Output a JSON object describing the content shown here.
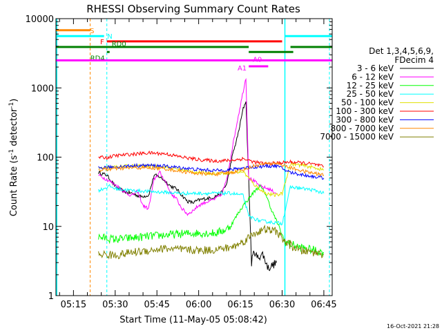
{
  "chart_data": {
    "type": "line",
    "title": "RHESSI Observing Summary Count Rates",
    "xlabel": "Start Time (11-May-05 05:08:42)",
    "ylabel_main": "Count Rate (s",
    "ylabel_sup1": "-1",
    "ylabel_mid": " detector",
    "ylabel_sup2": "-1",
    "ylabel_end": ")",
    "y_scale": "log",
    "ylim": [
      1,
      10000
    ],
    "xlim_minutes": [
      "05:08:42",
      "06:48:00"
    ],
    "x_ticks": [
      "05:15",
      "05:30",
      "05:45",
      "06:00",
      "06:15",
      "06:30",
      "06:45"
    ],
    "y_ticks": [
      "1",
      "10",
      "100",
      "1000",
      "10000"
    ],
    "legend_header": [
      "Det 1,3,4,5,6,9,",
      "FDecim 4"
    ],
    "legend_placement": "right",
    "series": [
      {
        "name": "3 - 6 keV",
        "color": "#000000",
        "points": [
          [
            "05:24",
            60
          ],
          [
            "05:27",
            55
          ],
          [
            "05:30",
            38
          ],
          [
            "05:33",
            32
          ],
          [
            "05:36",
            30
          ],
          [
            "05:39",
            27
          ],
          [
            "05:42",
            28
          ],
          [
            "05:44",
            55
          ],
          [
            "05:46",
            52
          ],
          [
            "05:48",
            45
          ],
          [
            "05:50",
            38
          ],
          [
            "05:52",
            35
          ],
          [
            "05:54",
            28
          ],
          [
            "05:56",
            23
          ],
          [
            "05:58",
            22
          ],
          [
            "06:00",
            24
          ],
          [
            "06:02",
            25
          ],
          [
            "06:05",
            26
          ],
          [
            "06:08",
            30
          ],
          [
            "06:10",
            40
          ],
          [
            "06:12",
            100
          ],
          [
            "06:14",
            200
          ],
          [
            "06:16",
            500
          ],
          [
            "06:17",
            650
          ],
          [
            "06:18",
            45
          ],
          [
            "06:19",
            3
          ],
          [
            "06:20",
            4.5
          ],
          [
            "06:21",
            3.5
          ],
          [
            "06:23",
            4
          ],
          [
            "06:25",
            2.5
          ],
          [
            "06:28",
            3
          ]
        ]
      },
      {
        "name": "6 - 12 keV",
        "color": "#ff00ff",
        "points": [
          [
            "05:24",
            55
          ],
          [
            "05:26",
            50
          ],
          [
            "05:28",
            45
          ],
          [
            "05:30",
            40
          ],
          [
            "05:32",
            35
          ],
          [
            "05:34",
            30
          ],
          [
            "05:36",
            28
          ],
          [
            "05:38",
            32
          ],
          [
            "05:40",
            20
          ],
          [
            "05:42",
            18
          ],
          [
            "05:44",
            48
          ],
          [
            "05:46",
            60
          ],
          [
            "05:48",
            45
          ],
          [
            "05:50",
            30
          ],
          [
            "05:52",
            25
          ],
          [
            "05:54",
            18
          ],
          [
            "05:56",
            15
          ],
          [
            "05:58",
            17
          ],
          [
            "06:00",
            20
          ],
          [
            "06:02",
            22
          ],
          [
            "06:05",
            24
          ],
          [
            "06:08",
            28
          ],
          [
            "06:10",
            45
          ],
          [
            "06:12",
            130
          ],
          [
            "06:14",
            350
          ],
          [
            "06:16",
            900
          ],
          [
            "06:17",
            1400
          ],
          [
            "06:18",
            50
          ],
          [
            "06:20",
            45
          ],
          [
            "06:22",
            38
          ],
          [
            "06:25",
            35
          ],
          [
            "06:28",
            30
          ]
        ]
      },
      {
        "name": "12 - 25 keV",
        "color": "#00ff00",
        "points": [
          [
            "05:24",
            7
          ],
          [
            "05:30",
            6.5
          ],
          [
            "05:36",
            6.8
          ],
          [
            "05:42",
            7.2
          ],
          [
            "05:48",
            7.5
          ],
          [
            "05:54",
            7.8
          ],
          [
            "06:00",
            8
          ],
          [
            "06:06",
            8
          ],
          [
            "06:10",
            9
          ],
          [
            "06:12",
            11
          ],
          [
            "06:14",
            15
          ],
          [
            "06:16",
            20
          ],
          [
            "06:18",
            25
          ],
          [
            "06:20",
            32
          ],
          [
            "06:22",
            38
          ],
          [
            "06:24",
            30
          ],
          [
            "06:26",
            18
          ],
          [
            "06:28",
            12
          ],
          [
            "06:31",
            6
          ],
          [
            "06:36",
            5
          ],
          [
            "06:42",
            4.5
          ],
          [
            "06:45",
            4.2
          ]
        ]
      },
      {
        "name": "25 - 50 keV",
        "color": "#00ffff",
        "points": [
          [
            "05:24",
            33
          ],
          [
            "05:28",
            38
          ],
          [
            "05:30",
            35
          ],
          [
            "05:36",
            33
          ],
          [
            "05:42",
            32
          ],
          [
            "05:48",
            31
          ],
          [
            "05:54",
            30
          ],
          [
            "06:00",
            30
          ],
          [
            "06:06",
            30
          ],
          [
            "06:12",
            30
          ],
          [
            "06:16",
            28
          ],
          [
            "06:18",
            14
          ],
          [
            "06:22",
            12
          ],
          [
            "06:26",
            11.5
          ],
          [
            "06:30",
            11
          ],
          [
            "06:33",
            37
          ],
          [
            "06:38",
            35
          ],
          [
            "06:42",
            33
          ],
          [
            "06:45",
            30
          ]
        ]
      },
      {
        "name": "50 - 100 keV",
        "color": "#e0e000",
        "points": [
          [
            "05:24",
            68
          ],
          [
            "05:30",
            72
          ],
          [
            "05:36",
            75
          ],
          [
            "05:42",
            74
          ],
          [
            "05:48",
            72
          ],
          [
            "05:54",
            65
          ],
          [
            "06:00",
            60
          ],
          [
            "06:06",
            58
          ],
          [
            "06:12",
            60
          ],
          [
            "06:16",
            62
          ],
          [
            "06:20",
            40
          ],
          [
            "06:24",
            30
          ],
          [
            "06:28",
            28
          ],
          [
            "06:30",
            30
          ],
          [
            "06:33",
            80
          ],
          [
            "06:38",
            75
          ],
          [
            "06:42",
            70
          ],
          [
            "06:45",
            65
          ]
        ]
      },
      {
        "name": "100 - 300 keV",
        "color": "#ff0000",
        "points": [
          [
            "05:24",
            100
          ],
          [
            "05:27",
            98
          ],
          [
            "05:30",
            105
          ],
          [
            "05:36",
            110
          ],
          [
            "05:42",
            115
          ],
          [
            "05:48",
            112
          ],
          [
            "05:54",
            100
          ],
          [
            "06:00",
            92
          ],
          [
            "06:06",
            88
          ],
          [
            "06:12",
            90
          ],
          [
            "06:16",
            95
          ],
          [
            "06:20",
            85
          ],
          [
            "06:24",
            80
          ],
          [
            "06:28",
            82
          ],
          [
            "06:33",
            85
          ],
          [
            "06:38",
            82
          ],
          [
            "06:42",
            78
          ],
          [
            "06:45",
            72
          ]
        ]
      },
      {
        "name": "300 - 800 keV",
        "color": "#0000ff",
        "points": [
          [
            "05:24",
            70
          ],
          [
            "05:30",
            72
          ],
          [
            "05:36",
            75
          ],
          [
            "05:42",
            76
          ],
          [
            "05:48",
            74
          ],
          [
            "05:54",
            70
          ],
          [
            "06:00",
            66
          ],
          [
            "06:06",
            64
          ],
          [
            "06:12",
            66
          ],
          [
            "06:16",
            70
          ],
          [
            "06:20",
            72
          ],
          [
            "06:24",
            74
          ],
          [
            "06:28",
            75
          ],
          [
            "06:33",
            60
          ],
          [
            "06:38",
            55
          ],
          [
            "06:42",
            52
          ],
          [
            "06:45",
            50
          ]
        ]
      },
      {
        "name": "800 - 7000 keV",
        "color": "#ff8800",
        "points": [
          [
            "05:24",
            65
          ],
          [
            "05:30",
            68
          ],
          [
            "05:36",
            70
          ],
          [
            "05:42",
            70
          ],
          [
            "05:48",
            68
          ],
          [
            "05:54",
            62
          ],
          [
            "06:00",
            58
          ],
          [
            "06:06",
            57
          ],
          [
            "06:12",
            60
          ],
          [
            "06:16",
            66
          ],
          [
            "06:20",
            75
          ],
          [
            "06:24",
            80
          ],
          [
            "06:28",
            82
          ],
          [
            "06:33",
            70
          ],
          [
            "06:38",
            62
          ],
          [
            "06:42",
            58
          ],
          [
            "06:45",
            55
          ]
        ]
      },
      {
        "name": "7000 - 15000 keV",
        "color": "#808000",
        "points": [
          [
            "05:24",
            4
          ],
          [
            "05:30",
            3.8
          ],
          [
            "05:36",
            4.2
          ],
          [
            "05:42",
            4.5
          ],
          [
            "05:48",
            4.8
          ],
          [
            "05:54",
            4.6
          ],
          [
            "06:00",
            4.5
          ],
          [
            "06:06",
            4.6
          ],
          [
            "06:12",
            5
          ],
          [
            "06:16",
            6
          ],
          [
            "06:20",
            8
          ],
          [
            "06:24",
            9
          ],
          [
            "06:28",
            8.5
          ],
          [
            "06:31",
            6
          ],
          [
            "06:36",
            4.5
          ],
          [
            "06:42",
            4.2
          ],
          [
            "06:45",
            4
          ]
        ]
      }
    ],
    "flags": [
      {
        "label": "S",
        "color": "#ff8800",
        "level": 6800,
        "segments": [
          [
            "05:08:42",
            "05:21"
          ]
        ]
      },
      {
        "label": "N",
        "color": "#00ffff",
        "level": 5600,
        "segments": [
          [
            "05:08:42",
            "05:26"
          ],
          [
            "06:31",
            "06:48"
          ]
        ]
      },
      {
        "label": "F",
        "color": "#ff0000",
        "level": 4700,
        "segments": [
          [
            "05:27",
            "06:30"
          ]
        ]
      },
      {
        "label": "RD0",
        "color": "#008000",
        "level": 3900,
        "segments": [
          [
            "05:08:42",
            "06:18"
          ],
          [
            "06:33",
            "06:48"
          ]
        ]
      },
      {
        "label": "RD4",
        "color": "#008000",
        "level": 3300,
        "segments": [
          [
            "05:27",
            "05:28"
          ],
          [
            "06:18",
            "06:34"
          ]
        ]
      },
      {
        "label": "A0",
        "color": "#ff00ff",
        "level": 2500,
        "segments": [
          [
            "05:08:42",
            "06:48"
          ]
        ]
      },
      {
        "label": "A1",
        "color": "#ff00ff",
        "level": 2050,
        "segments": [
          [
            "06:18",
            "06:25"
          ]
        ]
      }
    ],
    "vlines": [
      {
        "time": "05:21",
        "color": "#ff8800"
      },
      {
        "time": "05:27",
        "color": "#00ffff"
      },
      {
        "time": "06:31",
        "color": "#00ffff"
      },
      {
        "time": "06:47",
        "color": "#00ffff"
      }
    ],
    "vlines_solid": [
      {
        "time": "05:09",
        "color": "#00ffff"
      },
      {
        "time": "06:31",
        "color": "#00ffff"
      }
    ]
  },
  "footer_stamp": "16-Oct-2021 21:28"
}
